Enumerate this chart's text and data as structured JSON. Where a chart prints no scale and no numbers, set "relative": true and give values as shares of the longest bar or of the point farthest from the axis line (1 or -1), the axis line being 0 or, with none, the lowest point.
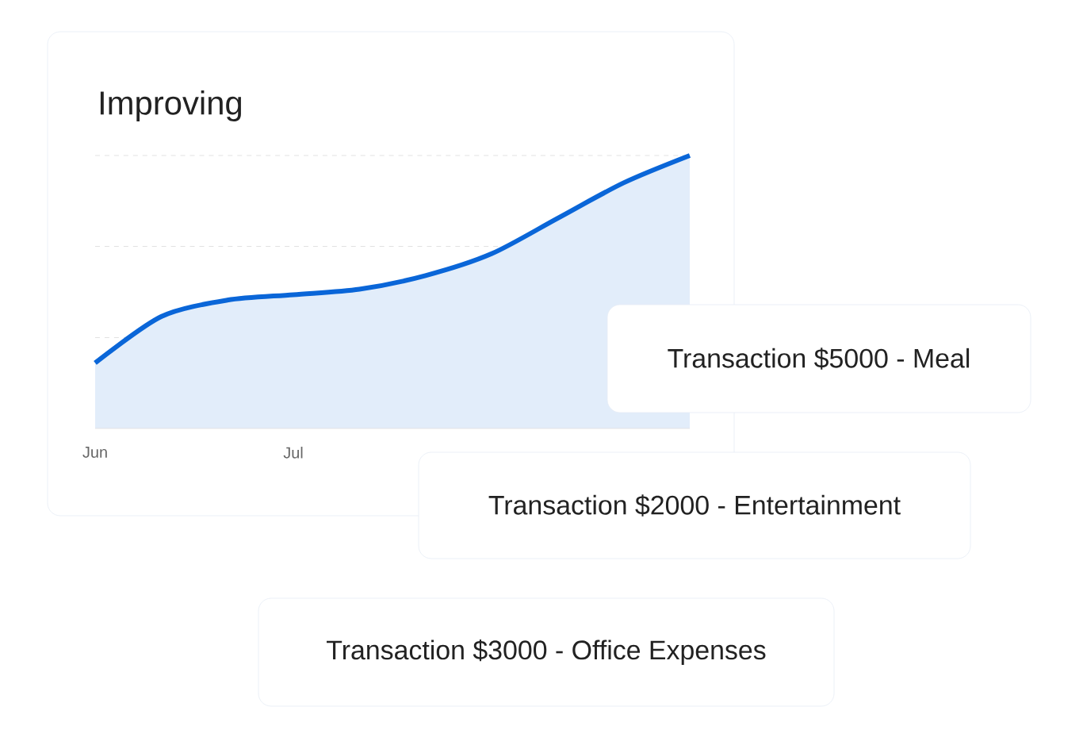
{
  "chart_data": {
    "type": "area",
    "title": "Improving",
    "relative": true,
    "ref_lines": [
      {
        "axis": "y",
        "value": 0.333,
        "color": "#d9d9d9",
        "line_style": "dashed"
      },
      {
        "axis": "y",
        "value": 0.667,
        "color": "#d9d9d9",
        "line_style": "dashed"
      },
      {
        "axis": "y",
        "value": 1,
        "color": "#d9d9d9",
        "line_style": "dashed"
      }
    ],
    "color": "#0a66d8",
    "categories": [
      "Jun",
      null,
      null,
      "Jul",
      null,
      null,
      null,
      null,
      null,
      null
    ],
    "values": [
      0.24,
      0.41,
      0.47,
      0.49,
      0.51,
      0.56,
      0.64,
      0.77,
      0.9,
      1
    ],
    "annotations": [
      "Transaction $5000 - Meal",
      "Transaction $2000 - Entertainment",
      "Transaction $3000 - Office Expenses"
    ]
  }
}
